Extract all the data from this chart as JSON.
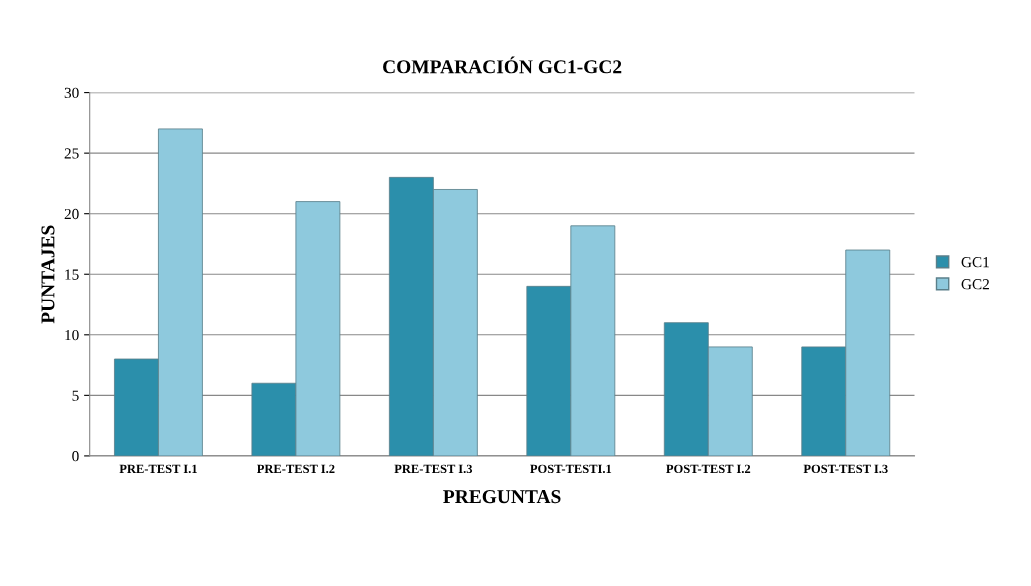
{
  "chart_data": {
    "type": "bar",
    "title": "COMPARACIÓN GC1-GC2",
    "xlabel": "PREGUNTAS",
    "ylabel": "PUNTAJES",
    "categories": [
      "PRE-TEST I.1",
      "PRE-TEST I.2",
      "PRE-TEST I.3",
      "POST-TESTI.1",
      "POST-TEST I.2",
      "POST-TEST I.3"
    ],
    "series": [
      {
        "name": "GC1",
        "color": "#2b8fab",
        "values": [
          8,
          6,
          23,
          14,
          11,
          9
        ]
      },
      {
        "name": "GC2",
        "color": "#8ec9dd",
        "values": [
          27,
          21,
          22,
          19,
          9,
          17
        ]
      }
    ],
    "ylim": [
      0,
      30
    ],
    "yticks": [
      0,
      5,
      10,
      15,
      20,
      25,
      30
    ],
    "grid": "y",
    "legend": "right"
  }
}
